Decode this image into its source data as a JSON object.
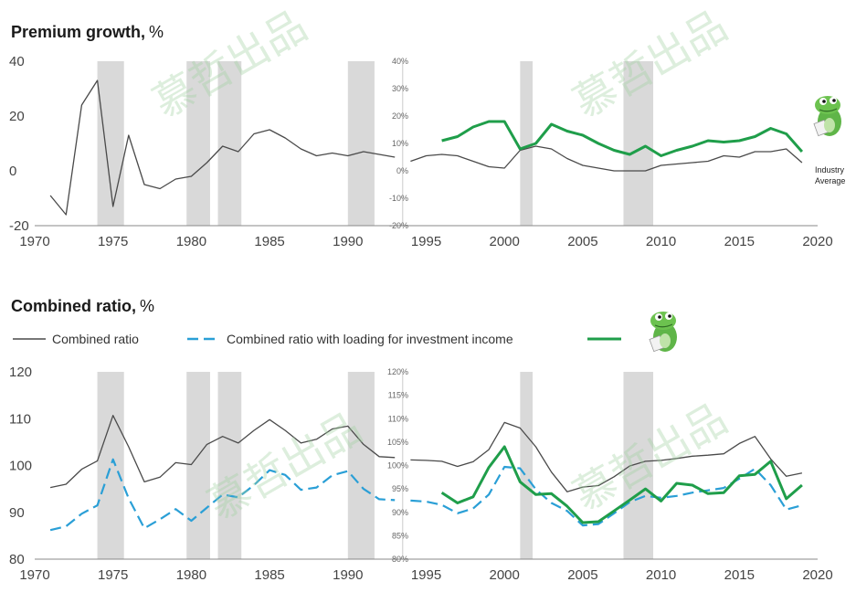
{
  "colors": {
    "industry": "#4a4a4a",
    "loaded": "#2a9fd6",
    "highlight": "#1f9e4a",
    "recession": "#d9d9d9",
    "axis": "#888888"
  },
  "icon": "frog-mascot-icon",
  "chart_data": [
    {
      "type": "line",
      "title": "Premium growth,",
      "unit": "%",
      "x_ticks": [
        1970,
        1975,
        1980,
        1985,
        1990,
        1995,
        2000,
        2005,
        2010,
        2015,
        2020
      ],
      "left_axis": {
        "ylim": [
          -20,
          40
        ],
        "ticks": [
          "-20",
          "0",
          "20",
          "40"
        ]
      },
      "right_axis": {
        "ylim": [
          -20,
          40
        ],
        "ticks": [
          "-20%",
          "-10%",
          "0%",
          "10%",
          "20%",
          "30%",
          "40%"
        ]
      },
      "recession_bands": [
        [
          1974,
          1975.7
        ],
        [
          1979.7,
          1981.2
        ],
        [
          1981.7,
          1983.2
        ],
        [
          1990,
          1991.7
        ],
        [
          2001,
          2001.8
        ],
        [
          2007.6,
          2009.5
        ]
      ],
      "annotation": [
        "Industry",
        "Average"
      ],
      "series": [
        {
          "role": "industry",
          "axis": "left",
          "x": [
            1971,
            1972,
            1973,
            1974,
            1975,
            1976,
            1977,
            1978,
            1979,
            1980,
            1981,
            1982,
            1983,
            1984,
            1985,
            1986,
            1987,
            1988,
            1989,
            1990,
            1991,
            1992,
            1993
          ],
          "y": [
            -9,
            -16,
            24,
            33,
            -13,
            13,
            -5,
            -6.5,
            -3,
            -2,
            3,
            9,
            7,
            13.5,
            15,
            12,
            8,
            5.5,
            6.5,
            5.5,
            7,
            6,
            5
          ]
        },
        {
          "role": "industry",
          "axis": "right",
          "x": [
            1994,
            1995,
            1996,
            1997,
            1998,
            1999,
            2000,
            2001,
            2002,
            2003,
            2004,
            2005,
            2006,
            2007,
            2008,
            2009,
            2010,
            2011,
            2012,
            2013,
            2014,
            2015,
            2016,
            2017,
            2018,
            2019
          ],
          "y": [
            3.5,
            5.5,
            6,
            5.5,
            3.5,
            1.5,
            1,
            7.5,
            9,
            8,
            4.5,
            2,
            1,
            0,
            0,
            0,
            2,
            2.5,
            3,
            3.5,
            5.5,
            5,
            7,
            7,
            8,
            3
          ]
        },
        {
          "role": "highlight",
          "axis": "right",
          "x": [
            1996,
            1997,
            1998,
            1999,
            2000,
            2001,
            2002,
            2003,
            2004,
            2005,
            2006,
            2007,
            2008,
            2009,
            2010,
            2011,
            2012,
            2013,
            2014,
            2015,
            2016,
            2017,
            2018,
            2019
          ],
          "y": [
            11,
            12.5,
            16,
            18,
            18,
            8,
            10,
            17,
            14.5,
            13,
            10,
            7.5,
            6,
            9,
            5.5,
            7.5,
            9,
            11,
            10.5,
            11,
            12.5,
            15.5,
            13.5,
            7
          ]
        }
      ]
    },
    {
      "type": "line",
      "title": "Combined ratio,",
      "unit": "%",
      "x_ticks": [
        1970,
        1975,
        1980,
        1985,
        1990,
        1995,
        2000,
        2005,
        2010,
        2015,
        2020
      ],
      "left_axis": {
        "ylim": [
          80,
          120
        ],
        "ticks": [
          "80",
          "90",
          "100",
          "110",
          "120"
        ]
      },
      "right_axis": {
        "ylim": [
          80,
          120
        ],
        "ticks": [
          "80%",
          "85%",
          "90%",
          "95%",
          "100%",
          "105%",
          "110%",
          "115%",
          "120%"
        ]
      },
      "recession_bands": [
        [
          1974,
          1975.7
        ],
        [
          1979.7,
          1981.2
        ],
        [
          1981.7,
          1983.2
        ],
        [
          1990,
          1991.7
        ],
        [
          2001,
          2001.8
        ],
        [
          2007.6,
          2009.5
        ]
      ],
      "legend": [
        "Combined ratio",
        "Combined ratio with loading for investment income"
      ],
      "series": [
        {
          "role": "industry",
          "axis": "left",
          "x": [
            1971,
            1972,
            1973,
            1974,
            1975,
            1976,
            1977,
            1978,
            1979,
            1980,
            1981,
            1982,
            1983,
            1984,
            1985,
            1986,
            1987,
            1988,
            1989,
            1990,
            1991,
            1992,
            1993
          ],
          "y": [
            95.3,
            96,
            99.2,
            101,
            110.7,
            104,
            96.5,
            97.5,
            100.6,
            100.2,
            104.5,
            106.2,
            104.8,
            107.5,
            109.8,
            107.5,
            104.8,
            105.6,
            107.8,
            108.4,
            104.5,
            101.9,
            101.7
          ]
        },
        {
          "role": "industry",
          "axis": "right",
          "x": [
            1994,
            1995,
            1996,
            1997,
            1998,
            1999,
            2000,
            2001,
            2002,
            2003,
            2004,
            2005,
            2006,
            2007,
            2008,
            2009,
            2010,
            2011,
            2012,
            2013,
            2014,
            2015,
            2016,
            2017,
            2018,
            2019
          ],
          "y": [
            101.2,
            101.1,
            100.9,
            99.8,
            100.8,
            103.4,
            109.2,
            108,
            104,
            98.6,
            94.4,
            95.4,
            95.7,
            97.6,
            99.9,
            100.9,
            101.1,
            101.5,
            102,
            102.2,
            102.5,
            104.7,
            106.2,
            101.4,
            97.7,
            98.4
          ]
        },
        {
          "role": "loaded",
          "axis": "left",
          "x": [
            1971,
            1972,
            1973,
            1974,
            1975,
            1976,
            1977,
            1978,
            1979,
            1980,
            1981,
            1982,
            1983,
            1984,
            1985,
            1986,
            1987,
            1988,
            1989,
            1990,
            1991,
            1992,
            1993
          ],
          "y": [
            86.2,
            87,
            89.7,
            91.5,
            101.3,
            93,
            86.6,
            88.5,
            90.7,
            88.2,
            91,
            93.8,
            93.2,
            95.8,
            99,
            98,
            94.8,
            95.3,
            97.9,
            98.8,
            95,
            92.8,
            92.6
          ]
        },
        {
          "role": "loaded",
          "axis": "right",
          "x": [
            1994,
            1995,
            1996,
            1997,
            1998,
            1999,
            2000,
            2001,
            2002,
            2003,
            2004,
            2005,
            2006,
            2007,
            2008,
            2009,
            2010,
            2011,
            2012,
            2013,
            2014,
            2015,
            2016,
            2017,
            2018,
            2019
          ],
          "y": [
            92.5,
            92.3,
            91.6,
            89.8,
            90.8,
            93.8,
            99.7,
            99.4,
            94.9,
            92,
            90.3,
            87.2,
            87.5,
            89.8,
            92.2,
            93.5,
            93.1,
            93.5,
            94.2,
            94.7,
            95.2,
            97.2,
            99.3,
            95.8,
            90.6,
            91.5
          ]
        },
        {
          "role": "highlight",
          "axis": "right",
          "x": [
            1996,
            1997,
            1998,
            1999,
            2000,
            2001,
            2002,
            2003,
            2004,
            2005,
            2006,
            2007,
            2008,
            2009,
            2010,
            2011,
            2012,
            2013,
            2014,
            2015,
            2016,
            2017,
            2018,
            2019
          ],
          "y": [
            94.2,
            92,
            93.3,
            99.6,
            104,
            96.5,
            93.8,
            94,
            91.3,
            87.8,
            88,
            90.3,
            92.6,
            95,
            92.4,
            96.2,
            95.8,
            94,
            94.2,
            97.8,
            98.1,
            100.9,
            92.9,
            95.8
          ]
        }
      ]
    }
  ]
}
